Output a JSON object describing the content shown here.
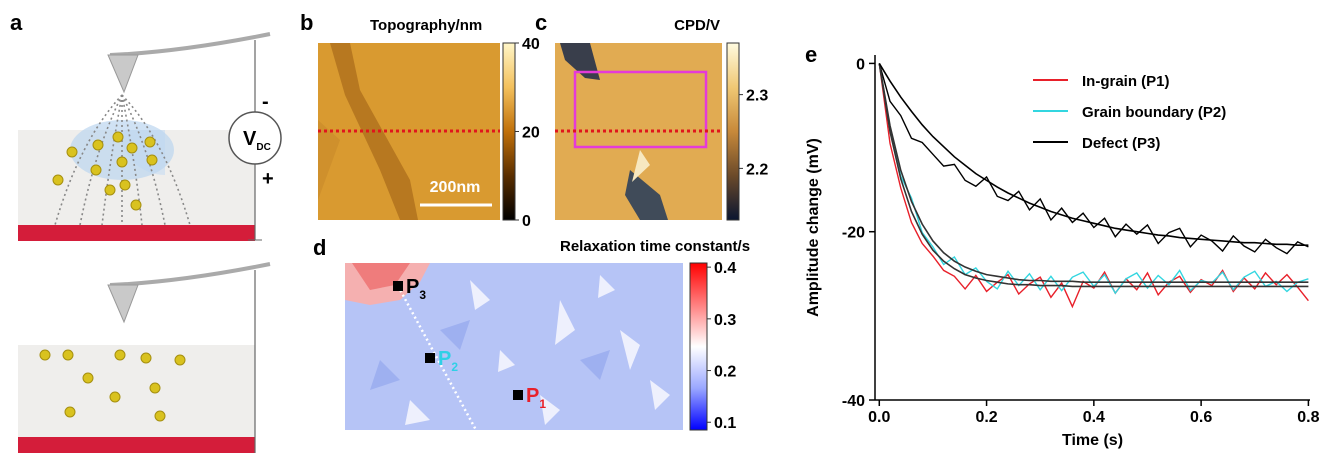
{
  "schematic": {
    "panel": "a",
    "source": "V",
    "source_sub": "DC",
    "minus": "-",
    "plus": "+"
  },
  "chart_data": [
    {
      "type": "image",
      "panel": "b",
      "title": "Topography/nm",
      "scale_bar": "200nm",
      "clim": [
        0,
        40
      ],
      "cticks": [
        0,
        20,
        40
      ],
      "colormap": [
        "#000000",
        "#5a2e00",
        "#c0700a",
        "#f3c05c",
        "#fff6c8"
      ]
    },
    {
      "type": "image",
      "panel": "c",
      "title": "CPD/V",
      "clim": [
        2.13,
        2.37
      ],
      "cticks": [
        2.2,
        2.3
      ],
      "colormap": [
        "#0a1530",
        "#6b4a2a",
        "#c7893a",
        "#f0c874",
        "#fffbe0"
      ]
    },
    {
      "type": "contour",
      "panel": "d",
      "title": "Relaxation time constant/s",
      "clim": [
        0.085,
        0.408
      ],
      "cticks": [
        0.1,
        0.2,
        0.3,
        0.4
      ],
      "colormap": [
        "#0000ff",
        "#9aa7ff",
        "#ffffff",
        "#ff8080",
        "#ff0000"
      ],
      "points": [
        {
          "label": "P",
          "sub": "3",
          "color": "#000000"
        },
        {
          "label": "P",
          "sub": "2",
          "color": "#2fd0e6"
        },
        {
          "label": "P",
          "sub": "1",
          "color": "#e8202a"
        }
      ]
    },
    {
      "type": "line",
      "panel": "e",
      "xlabel": "Time (s)",
      "ylabel": "Amplitude change (mV)",
      "xlim": [
        -0.008,
        0.803
      ],
      "ylim": [
        -40,
        1
      ],
      "xticks": [
        {
          "value": 0,
          "label": "0.0"
        },
        {
          "value": 0.2,
          "label": "0.2"
        },
        {
          "value": 0.4,
          "label": "0.4"
        },
        {
          "value": 0.6,
          "label": "0.6"
        },
        {
          "value": 0.8,
          "label": "0.8"
        }
      ],
      "yticks": [
        0,
        -20,
        -40
      ],
      "x": [
        0,
        0.02,
        0.04,
        0.06,
        0.08,
        0.1,
        0.12,
        0.14,
        0.16,
        0.18,
        0.2,
        0.22,
        0.24,
        0.26,
        0.28,
        0.3,
        0.32,
        0.34,
        0.36,
        0.38,
        0.4,
        0.42,
        0.44,
        0.46,
        0.48,
        0.5,
        0.52,
        0.54,
        0.56,
        0.58,
        0.6,
        0.62,
        0.64,
        0.66,
        0.68,
        0.7,
        0.72,
        0.74,
        0.76,
        0.78,
        0.8
      ],
      "series": [
        {
          "name": "In-grain (P1)",
          "color": "#e8202a",
          "values": [
            0,
            -9.5,
            -14.8,
            -18.9,
            -21.4,
            -22.9,
            -24.6,
            -25.3,
            -26.8,
            -25.2,
            -27.1,
            -26.0,
            -25.1,
            -27.4,
            -26.2,
            -25.4,
            -27.8,
            -26.1,
            -28.9,
            -25.9,
            -26.7,
            -24.8,
            -27.3,
            -25.6,
            -26.9,
            -24.9,
            -27.5,
            -26.0,
            -25.3,
            -27.2,
            -25.7,
            -26.4,
            -24.6,
            -27.1,
            -25.5,
            -26.8,
            -24.9,
            -26.3,
            -25.1,
            -26.6,
            -28.2
          ]
        },
        {
          "name": "Grain boundary (P2)",
          "color": "#33d6e0",
          "values": [
            0,
            -7.9,
            -13.4,
            -16.0,
            -20.1,
            -21.8,
            -23.9,
            -23.0,
            -25.1,
            -24.3,
            -25.9,
            -26.8,
            -24.7,
            -26.4,
            -25.0,
            -26.9,
            -25.3,
            -27.0,
            -25.4,
            -24.8,
            -26.5,
            -25.1,
            -27.3,
            -25.6,
            -24.9,
            -26.7,
            -25.2,
            -26.3,
            -24.6,
            -27.0,
            -25.8,
            -26.1,
            -24.8,
            -26.9,
            -25.4,
            -24.7,
            -26.5,
            -25.9,
            -27.1,
            -26.0,
            -25.6
          ]
        },
        {
          "name": "Defect (P3)",
          "color": "#000000",
          "values": [
            0,
            -4.5,
            -6.2,
            -8.9,
            -9.4,
            -10.8,
            -12.2,
            -12.0,
            -13.9,
            -14.6,
            -13.5,
            -15.8,
            -16.3,
            -15.2,
            -17.4,
            -16.1,
            -18.6,
            -17.2,
            -18.9,
            -17.8,
            -19.5,
            -18.4,
            -20.6,
            -19.1,
            -20.3,
            -19.2,
            -21.4,
            -20.1,
            -19.6,
            -21.8,
            -20.4,
            -21.1,
            -22.3,
            -20.5,
            -21.7,
            -22.4,
            -20.9,
            -21.9,
            -22.6,
            -21.2,
            -21.8
          ]
        }
      ],
      "fits": [
        {
          "color": "#333333",
          "values": [
            0,
            -8.1,
            -13.7,
            -17.6,
            -20.3,
            -22.2,
            -23.5,
            -24.4,
            -25.1,
            -25.5,
            -25.8,
            -26.0,
            -26.2,
            -26.3,
            -26.3,
            -26.4,
            -26.4,
            -26.4,
            -26.5,
            -26.5,
            -26.5,
            -26.5,
            -26.5,
            -26.5,
            -26.5,
            -26.5,
            -26.5,
            -26.5,
            -26.5,
            -26.5,
            -26.5,
            -26.5,
            -26.5,
            -26.5,
            -26.5,
            -26.5,
            -26.5,
            -26.5,
            -26.5,
            -26.5,
            -26.5
          ]
        },
        {
          "color": "#333333",
          "values": [
            0,
            -7.4,
            -12.7,
            -16.4,
            -19.1,
            -21.1,
            -22.5,
            -23.5,
            -24.2,
            -24.7,
            -25.1,
            -25.3,
            -25.5,
            -25.7,
            -25.8,
            -25.8,
            -25.9,
            -25.9,
            -25.9,
            -26.0,
            -26.0,
            -26.0,
            -26.0,
            -26.0,
            -26.0,
            -26.0,
            -26.0,
            -26.0,
            -26.0,
            -26.0,
            -26.0,
            -26.0,
            -26.0,
            -26.0,
            -26.0,
            -26.0,
            -26.0,
            -26.0,
            -26.0,
            -26.0,
            -26.0
          ]
        },
        {
          "color": "#000000",
          "values": [
            0,
            -2.1,
            -4.0,
            -5.7,
            -7.3,
            -8.7,
            -9.9,
            -11.1,
            -12.1,
            -13.1,
            -13.9,
            -14.7,
            -15.4,
            -16.0,
            -16.6,
            -17.1,
            -17.6,
            -18.0,
            -18.4,
            -18.7,
            -19.0,
            -19.3,
            -19.6,
            -19.8,
            -20.0,
            -20.2,
            -20.4,
            -20.5,
            -20.7,
            -20.8,
            -20.9,
            -21.0,
            -21.1,
            -21.2,
            -21.3,
            -21.3,
            -21.4,
            -21.5,
            -21.5,
            -21.6,
            -21.6
          ]
        }
      ]
    }
  ]
}
